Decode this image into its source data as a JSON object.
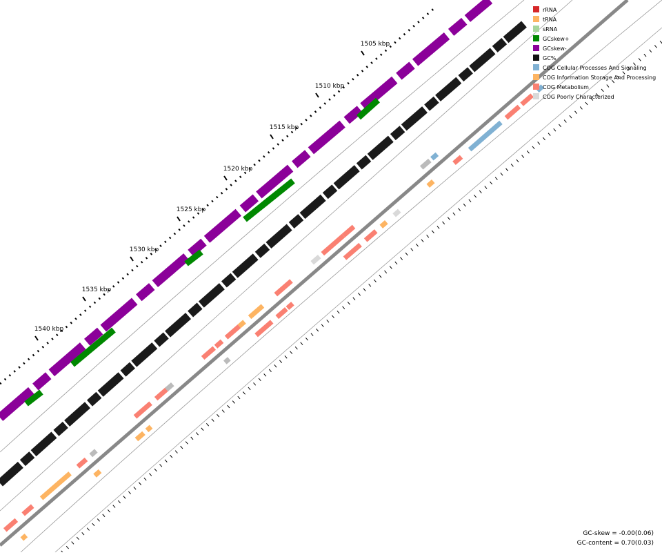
{
  "ruler": {
    "labels": [
      "1505 kbp",
      "1510 kbp",
      "1515 kbp",
      "1520 kbp",
      "1525 kbp",
      "1530 kbp",
      "1535 kbp",
      "1540 kbp"
    ]
  },
  "legend": {
    "items": [
      {
        "label": "rRNA",
        "color": "#d62728"
      },
      {
        "label": "tRNA",
        "color": "#fdb462"
      },
      {
        "label": "sRNA",
        "color": "#a6d59c"
      },
      {
        "label": "GCskew+",
        "color": "#008800"
      },
      {
        "label": "GCskew-",
        "color": "#8b0099"
      },
      {
        "label": "GC%",
        "color": "#111111"
      },
      {
        "label": "COG Cellular Processes And Signaling",
        "color": "#80b1d3"
      },
      {
        "label": "COG Information Storage And Processing",
        "color": "#fdb462"
      },
      {
        "label": "COG Metabolism",
        "color": "#fa8072"
      },
      {
        "label": "COG Poorly Characterized",
        "color": "#d9d9d9"
      }
    ]
  },
  "stats": {
    "gc_skew": "GC-skew = -0.00(0.06)",
    "gc_content": "GC-content = 0.70(0.03)"
  }
}
